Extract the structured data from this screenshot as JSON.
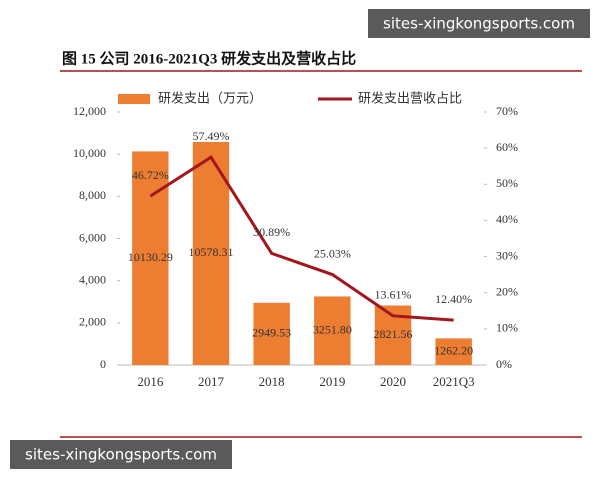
{
  "chart_data": {
    "type": "combo",
    "title": "图 15 公司 2016-2021Q3 研发支出及营收占比",
    "watermarks": [
      "sites-xingkongsports.com",
      "sites-xingkongsports.com"
    ],
    "categories": [
      "2016",
      "2017",
      "2018",
      "2019",
      "2020",
      "2021Q3"
    ],
    "series": [
      {
        "name": "研发支出（万元）",
        "type": "bar",
        "color": "#ed7d31",
        "values": [
          10130.29,
          10578.31,
          2949.53,
          3251.8,
          2821.56,
          1262.2
        ],
        "value_labels": [
          "10130.29",
          "10578.31",
          "2949.53",
          "3251.80",
          "2821.56",
          "1262.20"
        ]
      },
      {
        "name": "研发支出营收占比",
        "type": "line",
        "axis": "y2",
        "color": "#a3161c",
        "values": [
          46.72,
          57.49,
          30.89,
          25.03,
          13.61,
          12.4
        ],
        "value_labels": [
          "46.72%",
          "57.49%",
          "30.89%",
          "25.03%",
          "13.61%",
          "12.40%"
        ]
      }
    ],
    "ylim": [
      0,
      12000
    ],
    "yticks": [
      0,
      {
        "value": 2000,
        "label": "2,000"
      },
      {
        "value": 4000,
        "label": "4,000"
      },
      {
        "value": 6000,
        "label": "6,000"
      },
      {
        "value": 8000,
        "label": "8,000"
      },
      {
        "value": 10000,
        "label": "10,000"
      },
      {
        "value": 12000,
        "label": "12,000"
      }
    ],
    "y2lim": [
      0,
      70
    ],
    "y2ticks": [
      {
        "value": 0,
        "label": "0%"
      },
      {
        "value": 10,
        "label": "10%"
      },
      {
        "value": 20,
        "label": "20%"
      },
      {
        "value": 30,
        "label": "30%"
      },
      {
        "value": 40,
        "label": "40%"
      },
      {
        "value": 50,
        "label": "50%"
      },
      {
        "value": 60,
        "label": "60%"
      },
      {
        "value": 70,
        "label": "70%"
      }
    ],
    "grid": false
  }
}
